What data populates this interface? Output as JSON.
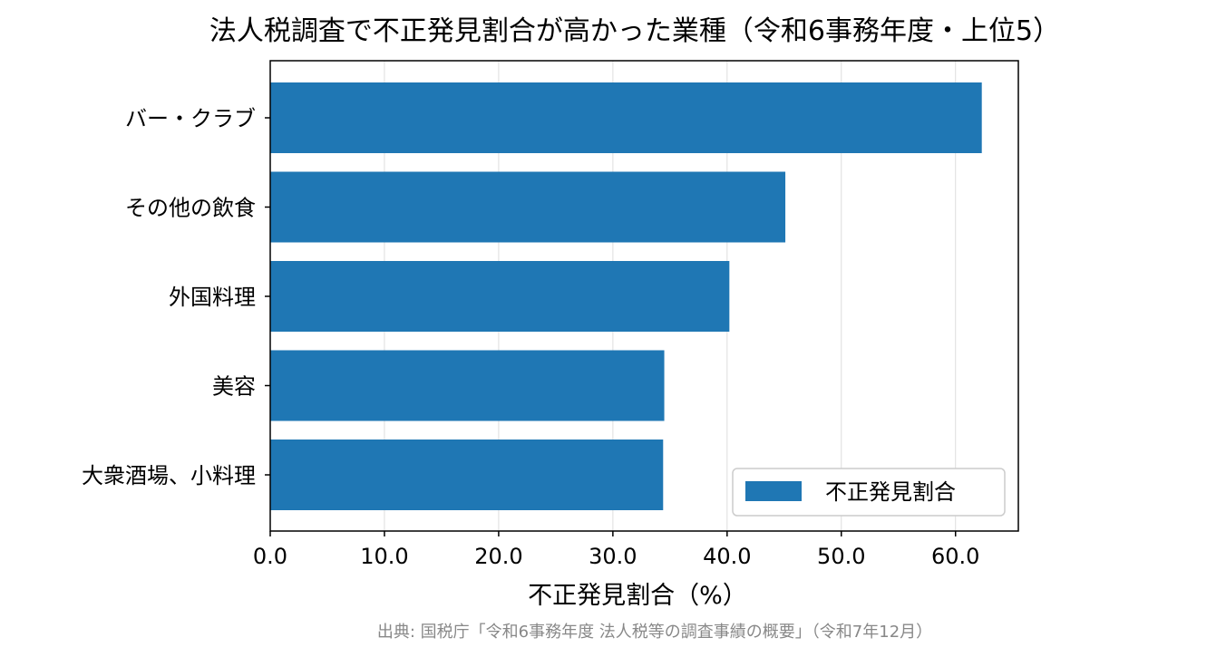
{
  "chart_data": {
    "type": "bar",
    "orientation": "horizontal",
    "title": "法人税調査で不正発見割合が高かった業種（令和6事務年度・上位5）",
    "categories": [
      "バー・クラブ",
      "その他の飲食",
      "外国料理",
      "美容",
      "大衆酒場、小料理"
    ],
    "series": [
      {
        "name": "不正発見割合",
        "values": [
          62.3,
          45.1,
          40.2,
          34.5,
          34.4
        ]
      }
    ],
    "xlabel": "不正発見割合（%）",
    "ylabel": "",
    "xlim": [
      0,
      65.5
    ],
    "xticks": [
      "0.0",
      "10.0",
      "20.0",
      "30.0",
      "40.0",
      "50.0",
      "60.0"
    ],
    "grid": "x",
    "legend_position": "bottom-right",
    "color": "#1f77b4",
    "source": "出典: 国税庁「令和6事務年度 法人税等の調査事績の概要」（令和7年12月）"
  }
}
